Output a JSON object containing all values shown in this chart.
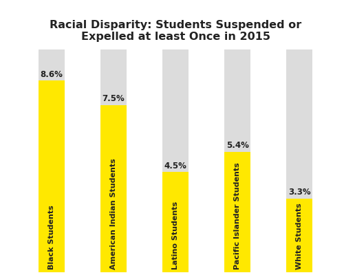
{
  "title": "Racial Disparity: Students Suspended or\nExpelled at least Once in 2015",
  "categories": [
    "Black Students",
    "American Indian Students",
    "Latino Students",
    "Pacific Islander Students",
    "White Students"
  ],
  "values": [
    8.6,
    7.5,
    4.5,
    5.4,
    3.3
  ],
  "labels": [
    "8.6%",
    "7.5%",
    "4.5%",
    "5.4%",
    "3.3%"
  ],
  "bar_color": "#FFE800",
  "bg_bar_color": "#DCDCDC",
  "max_value": 10.0,
  "bar_width": 0.42,
  "title_fontsize": 11.5,
  "label_fontsize": 8.5,
  "cat_fontsize": 8.0,
  "background_color": "#FFFFFF",
  "text_color": "#222222"
}
